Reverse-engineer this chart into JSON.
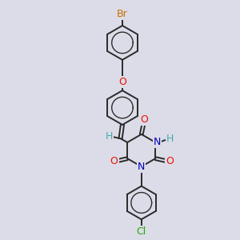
{
  "background_color": "#dcdce8",
  "bond_color": "#2a2a2a",
  "atom_colors": {
    "Br": "#c87000",
    "O": "#ee1100",
    "N": "#0000bb",
    "Cl": "#22aa00",
    "H": "#44aaaa"
  },
  "lw": 1.4,
  "fs": 8.5
}
